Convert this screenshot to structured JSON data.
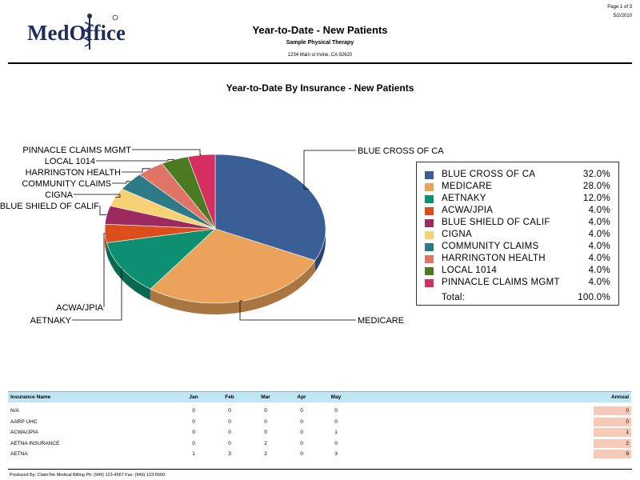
{
  "header": {
    "logo_text": "MedOffice",
    "report_title": "Year-to-Date - New Patients",
    "practice_name": "Sample Physical Therapy",
    "practice_address": "1234 Main st Irvine, CA 92620",
    "page_label": "Page 1 of 3",
    "report_date": "5/2/2010"
  },
  "chart_data": {
    "type": "pie",
    "title": "Year-to-Date By Insurance - New Patients",
    "slices": [
      {
        "name": "BLUE CROSS OF CA",
        "value": 32.0,
        "label": "32.0%",
        "color": "#3a5f96"
      },
      {
        "name": "MEDICARE",
        "value": 28.0,
        "label": "28.0%",
        "color": "#eba25a"
      },
      {
        "name": "AETNAKY",
        "value": 12.0,
        "label": "12.0%",
        "color": "#0d9072"
      },
      {
        "name": "ACWA/JPIA",
        "value": 4.0,
        "label": "4.0%",
        "color": "#db4e1c"
      },
      {
        "name": "BLUE SHIELD OF CALIF",
        "value": 4.0,
        "label": "4.0%",
        "color": "#9d2a5e"
      },
      {
        "name": "CIGNA",
        "value": 4.0,
        "label": "4.0%",
        "color": "#f8d174"
      },
      {
        "name": "COMMUNITY CLAIMS",
        "value": 4.0,
        "label": "4.0%",
        "color": "#2e7a87"
      },
      {
        "name": "HARRINGTON HEALTH",
        "value": 4.0,
        "label": "4.0%",
        "color": "#e07466"
      },
      {
        "name": "LOCAL 1014",
        "value": 4.0,
        "label": "4.0%",
        "color": "#4a7a22"
      },
      {
        "name": "PINNACLE CLAIMS MGMT",
        "value": 4.0,
        "label": "4.0%",
        "color": "#d42f60"
      }
    ],
    "total_label": "Total:",
    "total_value": "100.0%",
    "legend_position": "right"
  },
  "table": {
    "columns": [
      "Insurance Name",
      "Jan",
      "Feb",
      "Mar",
      "Apr",
      "May",
      "Annual"
    ],
    "rows": [
      {
        "name": "N/A",
        "months": [
          "0",
          "0",
          "0",
          "0",
          "0"
        ],
        "annual": "0"
      },
      {
        "name": "AARP UHC",
        "months": [
          "0",
          "0",
          "0",
          "0",
          "0"
        ],
        "annual": "0"
      },
      {
        "name": "ACWA/JPIA",
        "months": [
          "0",
          "0",
          "0",
          "0",
          "1"
        ],
        "annual": "1"
      },
      {
        "name": "AETNA INSURANCE",
        "months": [
          "0",
          "0",
          "2",
          "0",
          "0"
        ],
        "annual": "2"
      },
      {
        "name": "AETNA",
        "months": [
          "1",
          "3",
          "2",
          "0",
          "3"
        ],
        "annual": "9"
      }
    ]
  },
  "footer": {
    "text": "Produced By: ClaimTek Medical Billing   Ph: (949) 123-4567 Fax: (949) 123-5500"
  }
}
